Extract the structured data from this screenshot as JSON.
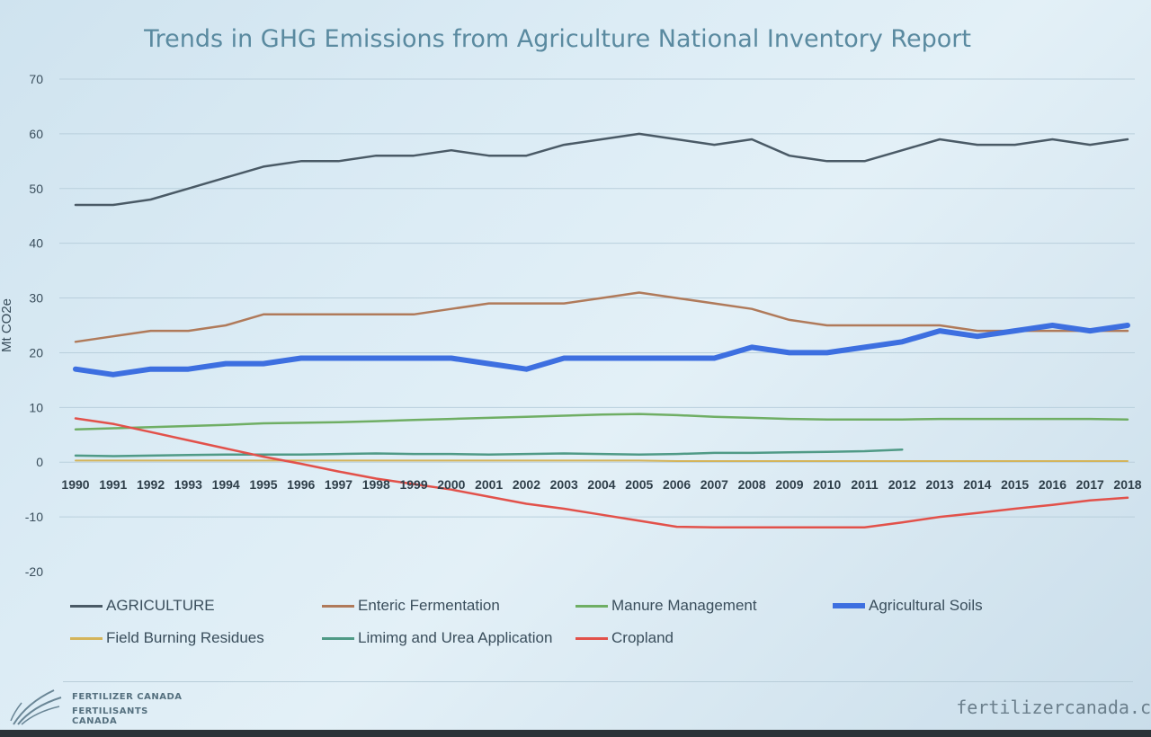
{
  "chart_data": {
    "type": "line",
    "title": "Trends in GHG Emissions from Agriculture National Inventory Report",
    "ylabel": "Mt CO2e",
    "xlabel": "",
    "ylim": [
      -20,
      70
    ],
    "yticks": [
      "70",
      "60",
      "50",
      "40",
      "30",
      "20",
      "10",
      "0",
      "-10",
      "-20"
    ],
    "categories": [
      "1990",
      "1991",
      "1992",
      "1993",
      "1994",
      "1995",
      "1996",
      "1997",
      "1998",
      "1999",
      "2000",
      "2001",
      "2002",
      "2003",
      "2004",
      "2005",
      "2006",
      "2007",
      "2008",
      "2009",
      "2010",
      "2011",
      "2012",
      "2013",
      "2014",
      "2015",
      "2016",
      "2017",
      "2018"
    ],
    "grid": true,
    "legend_position": "bottom",
    "series": [
      {
        "name": "AGRICULTURE",
        "color": "#4a5a66",
        "width": 2.5,
        "values": [
          47,
          47,
          48,
          50,
          52,
          54,
          55,
          55,
          56,
          56,
          57,
          56,
          56,
          58,
          59,
          60,
          59,
          58,
          59,
          56,
          55,
          55,
          57,
          59,
          58,
          58,
          59,
          58,
          59
        ]
      },
      {
        "name": "Enteric Fermentation",
        "color": "#b07a5a",
        "width": 2.5,
        "values": [
          22,
          23,
          24,
          24,
          25,
          27,
          27,
          27,
          27,
          27,
          28,
          29,
          29,
          29,
          30,
          31,
          30,
          29,
          28,
          26,
          25,
          25,
          25,
          25,
          24,
          24,
          24,
          24,
          24
        ]
      },
      {
        "name": "Manure Management",
        "color": "#6fae64",
        "width": 2.5,
        "values": [
          6,
          6.2,
          6.4,
          6.6,
          6.8,
          7.1,
          7.2,
          7.3,
          7.5,
          7.7,
          7.9,
          8.1,
          8.3,
          8.5,
          8.7,
          8.8,
          8.6,
          8.3,
          8.1,
          7.9,
          7.8,
          7.8,
          7.8,
          7.9,
          7.9,
          7.9,
          7.9,
          7.9,
          7.8
        ]
      },
      {
        "name": "Agricultural Soils",
        "color": "#3d6fe0",
        "width": 6,
        "values": [
          17,
          16,
          17,
          17,
          18,
          18,
          19,
          19,
          19,
          19,
          19,
          18,
          17,
          19,
          19,
          19,
          19,
          19,
          21,
          20,
          20,
          21,
          22,
          24,
          23,
          24,
          25,
          24,
          25
        ]
      },
      {
        "name": "Field Burning Residues",
        "color": "#d4b45a",
        "width": 2,
        "values": [
          0.3,
          0.3,
          0.3,
          0.3,
          0.3,
          0.3,
          0.3,
          0.3,
          0.3,
          0.3,
          0.3,
          0.3,
          0.3,
          0.3,
          0.3,
          0.3,
          0.2,
          0.2,
          0.2,
          0.2,
          0.2,
          0.2,
          0.2,
          0.2,
          0.2,
          0.2,
          0.2,
          0.2,
          0.2
        ]
      },
      {
        "name": "Limimg and Urea Application",
        "color": "#4f9a86",
        "width": 2.5,
        "values": [
          1.2,
          1.1,
          1.2,
          1.3,
          1.4,
          1.4,
          1.4,
          1.5,
          1.6,
          1.5,
          1.5,
          1.4,
          1.5,
          1.6,
          1.5,
          1.4,
          1.5,
          1.7,
          1.7,
          1.8,
          1.9,
          2.0,
          2.3,
          null,
          null,
          null,
          null,
          null,
          null
        ]
      },
      {
        "name": "Cropland",
        "color": "#e2514a",
        "width": 2.5,
        "values": [
          8,
          7,
          5.5,
          4,
          2.5,
          1,
          -0.3,
          -1.7,
          -3,
          -4,
          -5,
          -6.3,
          -7.6,
          -8.5,
          -9.6,
          -10.7,
          -11.8,
          -11.9,
          -11.9,
          -11.9,
          -11.9,
          -11.9,
          -11,
          -10,
          -9.3,
          -8.5,
          -7.8,
          -7,
          -6.5
        ]
      }
    ]
  },
  "footer": {
    "logo_line1": "FERTILIZER CANADA",
    "logo_line2": "FERTILISANTS CANADA",
    "site": "fertilizercanada.c"
  },
  "colors": {
    "title": "#5a8aa0",
    "axis_text": "#3a4e5c",
    "grid": "#b9cfdc"
  }
}
